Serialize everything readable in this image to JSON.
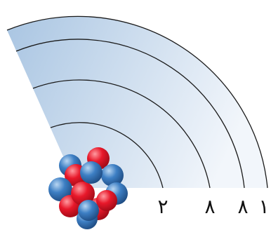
{
  "diagram": {
    "shells": [
      {
        "electrons": "٢"
      },
      {
        "electrons": "٨"
      },
      {
        "electrons": "٨"
      },
      {
        "electrons": "١"
      }
    ],
    "colors": {
      "proton": "#e8182a",
      "neutron": "#3d7fc4",
      "fill_light": "#f2f6fb",
      "fill_dark": "#a9c5e2",
      "shell_line": "#1a1a1a"
    }
  }
}
